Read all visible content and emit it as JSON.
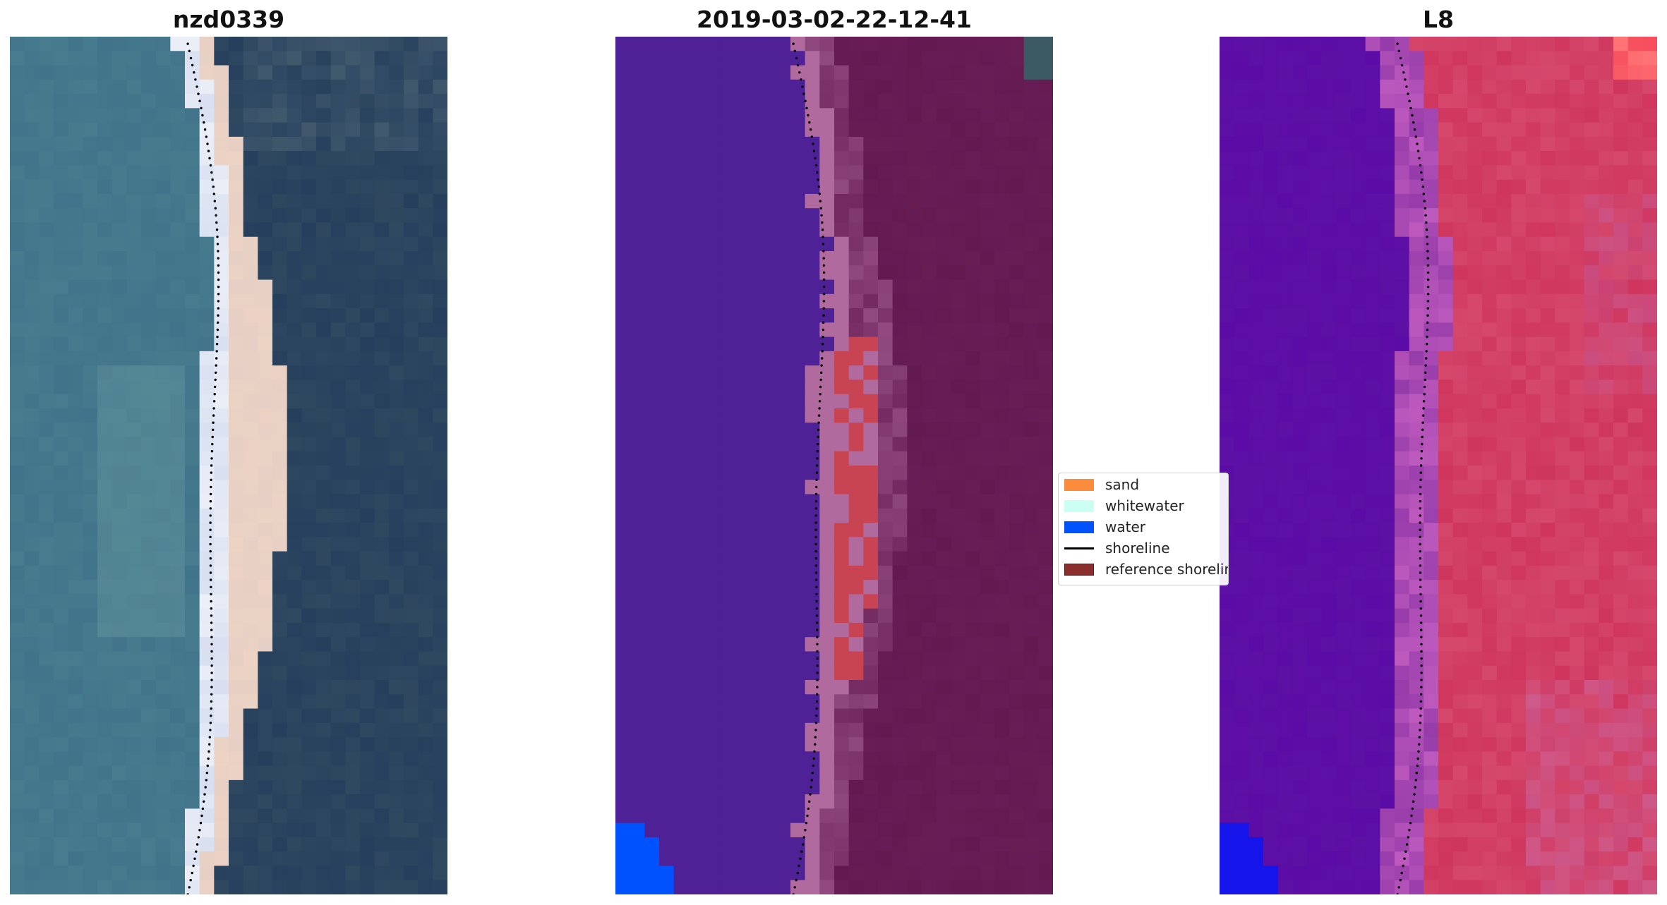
{
  "panels": [
    {
      "title": "nzd0339",
      "kind": "rgb"
    },
    {
      "title": "2019-03-02-22-12-41",
      "kind": "classified"
    },
    {
      "title": "L8",
      "kind": "falsecolor"
    }
  ],
  "legend": {
    "items": [
      {
        "label": "sand",
        "color": "#fb8c3c",
        "type": "patch"
      },
      {
        "label": "whitewater",
        "color": "#ccfff4",
        "type": "patch"
      },
      {
        "label": "water",
        "color": "#0052ff",
        "type": "patch"
      },
      {
        "label": "shoreline",
        "color": "#000000",
        "type": "line"
      },
      {
        "label": "reference shoreline",
        "color": "#8b2e2e",
        "type": "patch"
      }
    ]
  },
  "colors": {
    "ocean_rgb": "#3e7088",
    "land_rgb": "#253f5d",
    "beach_rgb": "#ecd3c4",
    "surf_rgb": "#d8dff0",
    "water_class": "#4f2197",
    "land_class": "#631a51",
    "sand_class": "#c94452",
    "white_class": "#b06a9e",
    "deep_blue": "#0052ff",
    "fc_water": "#5c0ca6",
    "fc_land": "#d5486c",
    "fc_bright": "#f54b5b"
  }
}
